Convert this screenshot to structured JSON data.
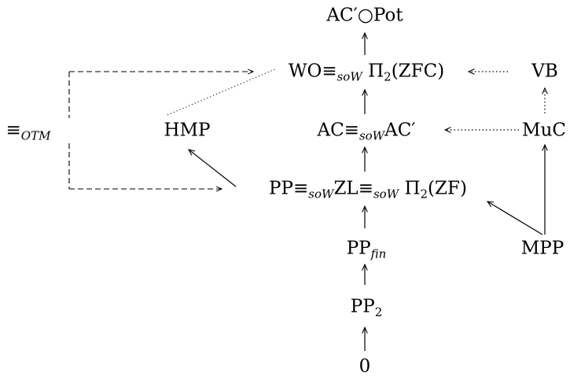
{
  "nodes": {
    "top": {
      "text": "AC′○Pot"
    },
    "wo": {
      "text": "WO≡",
      "sub": "soW",
      "tail": " Π",
      "tail_sub": "2",
      "tail_end": "(ZFC)"
    },
    "vb": {
      "text": "VB"
    },
    "otm": {
      "text": "≡",
      "sub": "OTM"
    },
    "hmp": {
      "text": "HMP"
    },
    "ac": {
      "text": "AC≡",
      "sub": "soW",
      "tail": "AC′"
    },
    "muc": {
      "text": "MuC"
    },
    "pp": {
      "text": "PP≡",
      "sub": "soW",
      "mid": "ZL≡",
      "mid_sub": "soW",
      "tail": " Π",
      "tail_sub": "2",
      "tail_end": "(ZF)"
    },
    "mpp": {
      "text": "MPP"
    },
    "ppfin": {
      "text": "PP",
      "sub": "fin"
    },
    "pp2": {
      "text": "PP",
      "sub": "2"
    },
    "zero": {
      "text": "0"
    }
  }
}
